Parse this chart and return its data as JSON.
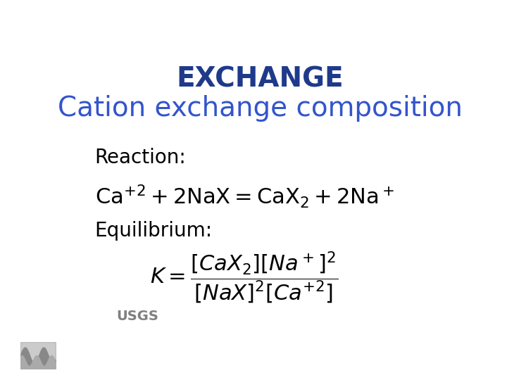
{
  "title1": "EXCHANGE",
  "title2": "Cation exchange composition",
  "title1_color": "#1F3A8A",
  "title2_color": "#3355CC",
  "title1_fontsize": 28,
  "title2_fontsize": 28,
  "reaction_label": "Reaction:",
  "equilibrium_label": "Equilibrium:",
  "label_fontsize": 20,
  "reaction_fontsize": 20,
  "equation_fontsize": 22,
  "bg_color": "#FFFFFF",
  "text_color": "#000000",
  "usgs_color": "#808080"
}
